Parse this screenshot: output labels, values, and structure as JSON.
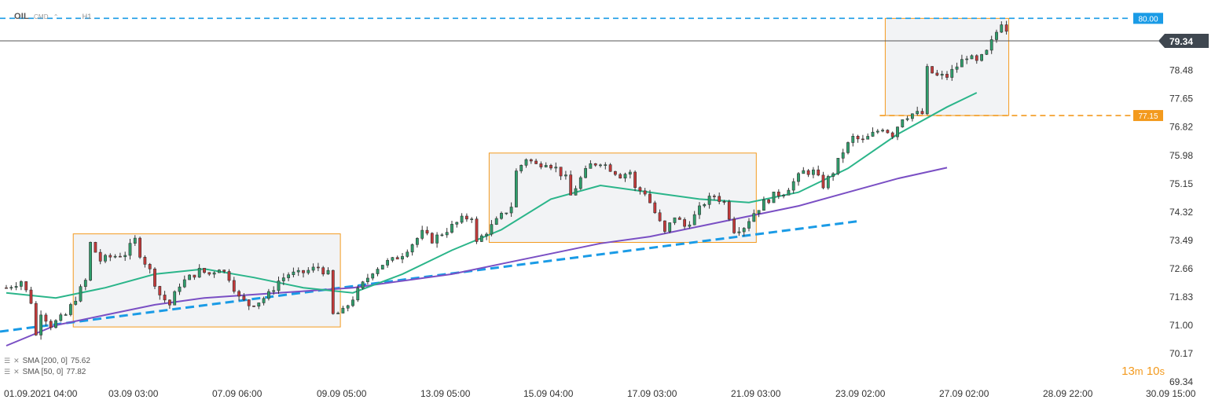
{
  "header": {
    "symbol": "OIL",
    "type": "CMD",
    "arrow": "⌃",
    "timeframe": "H1"
  },
  "timer": {
    "minutes": "13",
    "minutes_unit": "m",
    "seconds": "10",
    "seconds_unit": "s"
  },
  "indicators": [
    {
      "label": "SMA [200, 0]",
      "value": "75.62",
      "color": "#7a4fc4"
    },
    {
      "label": "SMA [50, 0]",
      "value": "77.82",
      "color": "#2bb58a"
    }
  ],
  "colors": {
    "up": "#2f9e6c",
    "down": "#c43a3a",
    "wick": "#333333",
    "trend": "#1a9be6",
    "zone": "#f39a1e",
    "zone_fill": "#f2f3f5",
    "price_badge": "#3f4750",
    "grid_text": "#333333"
  },
  "chart_data": {
    "type": "candlestick",
    "title": "",
    "xlabel": "",
    "ylabel": "",
    "ylim": [
      69.34,
      80.5
    ],
    "y_ticks": [
      "79.34",
      "78.48",
      "77.65",
      "76.82",
      "75.98",
      "75.15",
      "74.32",
      "73.49",
      "72.66",
      "71.83",
      "71.00",
      "70.17",
      "69.34"
    ],
    "x_ticks": [
      "01.09.2021",
      "04:00",
      "03.09",
      "03:00",
      "07.09",
      "06:00",
      "09.09",
      "05:00",
      "13.09",
      "05:00",
      "15.09",
      "04:00",
      "17.09",
      "03:00",
      "21.09",
      "03:00",
      "23.09",
      "02:00",
      "27.09",
      "02:00",
      "28.09",
      "22:00",
      "30.09",
      "15:00"
    ],
    "current_price": "79.34",
    "levels": [
      {
        "label": "80.00",
        "value": 80.0,
        "style": "dashed",
        "color": "#1a9be6"
      },
      {
        "label": "77.15",
        "value": 77.15,
        "style": "dashed",
        "color": "#f39a1e"
      }
    ],
    "path": [
      [
        0,
        72.1
      ],
      [
        3,
        72.3
      ],
      [
        5,
        71.7
      ],
      [
        6,
        70.7
      ],
      [
        7,
        71.4
      ],
      [
        9,
        71.0
      ],
      [
        12,
        71.3
      ],
      [
        14,
        71.8
      ],
      [
        16,
        72.3
      ],
      [
        17,
        73.4
      ],
      [
        19,
        72.9
      ],
      [
        21,
        73.0
      ],
      [
        24,
        73.1
      ],
      [
        26,
        73.5
      ],
      [
        27,
        73.1
      ],
      [
        29,
        72.6
      ],
      [
        31,
        71.9
      ],
      [
        33,
        71.6
      ],
      [
        35,
        72.2
      ],
      [
        37,
        72.4
      ],
      [
        39,
        72.6
      ],
      [
        41,
        72.5
      ],
      [
        43,
        72.7
      ],
      [
        45,
        72.4
      ],
      [
        47,
        71.8
      ],
      [
        49,
        71.6
      ],
      [
        51,
        71.7
      ],
      [
        53,
        71.9
      ],
      [
        55,
        72.3
      ],
      [
        57,
        72.5
      ],
      [
        59,
        72.5
      ],
      [
        61,
        72.6
      ],
      [
        63,
        72.7
      ],
      [
        65,
        72.5
      ],
      [
        66,
        71.3
      ],
      [
        68,
        71.4
      ],
      [
        70,
        71.8
      ],
      [
        72,
        72.2
      ],
      [
        74,
        72.6
      ],
      [
        76,
        72.8
      ],
      [
        78,
        72.9
      ],
      [
        80,
        73.1
      ],
      [
        82,
        73.4
      ],
      [
        84,
        73.7
      ],
      [
        86,
        73.5
      ],
      [
        88,
        73.7
      ],
      [
        90,
        73.9
      ],
      [
        92,
        74.1
      ],
      [
        94,
        74.2
      ],
      [
        95,
        73.4
      ],
      [
        96,
        73.6
      ],
      [
        98,
        73.9
      ],
      [
        100,
        74.2
      ],
      [
        102,
        74.5
      ],
      [
        103,
        75.5
      ],
      [
        105,
        75.9
      ],
      [
        107,
        75.7
      ],
      [
        109,
        75.8
      ],
      [
        111,
        75.6
      ],
      [
        113,
        75.3
      ],
      [
        114,
        74.8
      ],
      [
        116,
        75.3
      ],
      [
        118,
        75.7
      ],
      [
        120,
        75.8
      ],
      [
        122,
        75.6
      ],
      [
        124,
        75.4
      ],
      [
        126,
        75.5
      ],
      [
        127,
        75.0
      ],
      [
        129,
        74.9
      ],
      [
        131,
        74.3
      ],
      [
        133,
        73.7
      ],
      [
        135,
        74.2
      ],
      [
        137,
        73.9
      ],
      [
        139,
        74.2
      ],
      [
        141,
        74.6
      ],
      [
        143,
        74.8
      ],
      [
        145,
        74.6
      ],
      [
        147,
        73.8
      ],
      [
        149,
        73.9
      ],
      [
        151,
        74.3
      ],
      [
        153,
        74.6
      ],
      [
        155,
        74.8
      ],
      [
        157,
        74.9
      ],
      [
        159,
        75.2
      ],
      [
        161,
        75.5
      ],
      [
        163,
        75.5
      ],
      [
        165,
        75.1
      ],
      [
        167,
        75.5
      ],
      [
        169,
        76.1
      ],
      [
        171,
        76.5
      ],
      [
        173,
        76.4
      ],
      [
        175,
        76.6
      ],
      [
        177,
        76.8
      ],
      [
        179,
        76.6
      ],
      [
        181,
        77.1
      ],
      [
        183,
        77.2
      ],
      [
        185,
        77.2
      ],
      [
        186,
        78.5
      ],
      [
        188,
        78.3
      ],
      [
        190,
        78.3
      ],
      [
        192,
        78.6
      ],
      [
        194,
        78.9
      ],
      [
        196,
        78.7
      ],
      [
        198,
        79.0
      ],
      [
        200,
        79.6
      ],
      [
        201,
        79.9
      ],
      [
        202,
        79.7
      ]
    ],
    "sma50": [
      [
        0,
        71.95
      ],
      [
        10,
        71.8
      ],
      [
        20,
        72.1
      ],
      [
        30,
        72.5
      ],
      [
        40,
        72.65
      ],
      [
        50,
        72.4
      ],
      [
        60,
        72.1
      ],
      [
        70,
        71.95
      ],
      [
        80,
        72.5
      ],
      [
        90,
        73.2
      ],
      [
        100,
        73.8
      ],
      [
        110,
        74.7
      ],
      [
        120,
        75.1
      ],
      [
        130,
        74.9
      ],
      [
        140,
        74.7
      ],
      [
        150,
        74.6
      ],
      [
        160,
        74.9
      ],
      [
        170,
        75.6
      ],
      [
        180,
        76.6
      ],
      [
        190,
        77.4
      ],
      [
        196,
        77.82
      ]
    ],
    "sma200": [
      [
        0,
        70.4
      ],
      [
        10,
        71.0
      ],
      [
        20,
        71.3
      ],
      [
        30,
        71.6
      ],
      [
        40,
        71.8
      ],
      [
        50,
        71.9
      ],
      [
        60,
        72.0
      ],
      [
        70,
        72.1
      ],
      [
        80,
        72.3
      ],
      [
        90,
        72.5
      ],
      [
        100,
        72.8
      ],
      [
        110,
        73.1
      ],
      [
        120,
        73.4
      ],
      [
        130,
        73.6
      ],
      [
        140,
        73.9
      ],
      [
        150,
        74.2
      ],
      [
        160,
        74.5
      ],
      [
        170,
        74.9
      ],
      [
        180,
        75.3
      ],
      [
        190,
        75.62
      ]
    ],
    "trendline": {
      "from": [
        0,
        70.93
      ],
      "to": [
        172,
        74.05
      ],
      "color": "#1a9be6"
    },
    "zones": [
      {
        "i0": 14,
        "i1": 67,
        "y0": 70.95,
        "y1": 73.68
      },
      {
        "i0": 98,
        "i1": 151,
        "y0": 73.43,
        "y1": 76.05
      },
      {
        "i0": 178,
        "i1": 202,
        "y0": 77.15,
        "y1": 80.0
      }
    ],
    "n_candles": 203
  }
}
